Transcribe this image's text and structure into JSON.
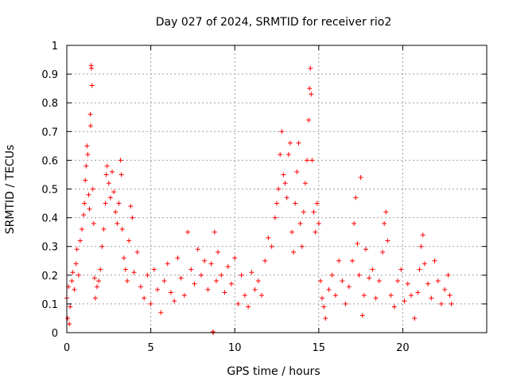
{
  "chart_data": {
    "type": "scatter",
    "title": "Day 027 of 2024, SRMTID for receiver rio2",
    "xlabel": "GPS time / hours",
    "ylabel": "SRMTID / TECUs",
    "xlim": [
      0,
      25
    ],
    "ylim": [
      0,
      1
    ],
    "xticks": [
      0,
      5,
      10,
      15,
      20
    ],
    "xtick_labels": [
      "0",
      "5",
      "10",
      "15",
      "20"
    ],
    "yticks": [
      0,
      0.1,
      0.2,
      0.3,
      0.4,
      0.5,
      0.6,
      0.7,
      0.8,
      0.9,
      1
    ],
    "ytick_labels": [
      "0",
      "0.1",
      "0.2",
      "0.3",
      "0.4",
      "0.5",
      "0.6",
      "0.7",
      "0.8",
      "0.9",
      "1"
    ],
    "grid": true,
    "marker": "+",
    "series": [
      {
        "name": "SRMTID",
        "color": "#ff0000",
        "points": [
          [
            0.0,
            0.12
          ],
          [
            0.05,
            0.05
          ],
          [
            0.1,
            0.16
          ],
          [
            0.15,
            0.03
          ],
          [
            0.2,
            0.09
          ],
          [
            0.3,
            0.18
          ],
          [
            0.35,
            0.21
          ],
          [
            0.45,
            0.15
          ],
          [
            0.55,
            0.24
          ],
          [
            0.6,
            0.29
          ],
          [
            0.7,
            0.2
          ],
          [
            0.8,
            0.32
          ],
          [
            0.9,
            0.36
          ],
          [
            1.0,
            0.41
          ],
          [
            1.05,
            0.45
          ],
          [
            1.1,
            0.53
          ],
          [
            1.15,
            0.58
          ],
          [
            1.2,
            0.65
          ],
          [
            1.25,
            0.62
          ],
          [
            1.3,
            0.48
          ],
          [
            1.35,
            0.43
          ],
          [
            1.4,
            0.76
          ],
          [
            1.42,
            0.72
          ],
          [
            1.45,
            0.93
          ],
          [
            1.47,
            0.92
          ],
          [
            1.5,
            0.86
          ],
          [
            1.55,
            0.5
          ],
          [
            1.6,
            0.38
          ],
          [
            1.65,
            0.19
          ],
          [
            1.7,
            0.12
          ],
          [
            1.8,
            0.16
          ],
          [
            1.9,
            0.18
          ],
          [
            2.0,
            0.22
          ],
          [
            2.1,
            0.3
          ],
          [
            2.2,
            0.36
          ],
          [
            2.3,
            0.45
          ],
          [
            2.35,
            0.55
          ],
          [
            2.4,
            0.58
          ],
          [
            2.5,
            0.52
          ],
          [
            2.6,
            0.47
          ],
          [
            2.7,
            0.56
          ],
          [
            2.8,
            0.49
          ],
          [
            2.9,
            0.42
          ],
          [
            3.0,
            0.38
          ],
          [
            3.1,
            0.45
          ],
          [
            3.2,
            0.6
          ],
          [
            3.25,
            0.55
          ],
          [
            3.3,
            0.36
          ],
          [
            3.4,
            0.26
          ],
          [
            3.5,
            0.22
          ],
          [
            3.6,
            0.18
          ],
          [
            3.7,
            0.32
          ],
          [
            3.8,
            0.44
          ],
          [
            3.9,
            0.4
          ],
          [
            4.0,
            0.21
          ],
          [
            4.2,
            0.28
          ],
          [
            4.4,
            0.16
          ],
          [
            4.6,
            0.12
          ],
          [
            4.8,
            0.2
          ],
          [
            5.0,
            0.1
          ],
          [
            5.2,
            0.22
          ],
          [
            5.4,
            0.15
          ],
          [
            5.6,
            0.07
          ],
          [
            5.8,
            0.18
          ],
          [
            6.0,
            0.24
          ],
          [
            6.2,
            0.14
          ],
          [
            6.4,
            0.11
          ],
          [
            6.6,
            0.26
          ],
          [
            6.8,
            0.19
          ],
          [
            7.0,
            0.13
          ],
          [
            7.2,
            0.35
          ],
          [
            7.4,
            0.22
          ],
          [
            7.6,
            0.17
          ],
          [
            7.8,
            0.29
          ],
          [
            8.0,
            0.2
          ],
          [
            8.2,
            0.25
          ],
          [
            8.4,
            0.15
          ],
          [
            8.6,
            0.24
          ],
          [
            8.8,
            0.35
          ],
          [
            8.9,
            0.18
          ],
          [
            8.7,
            0.003
          ],
          [
            8.72,
            0.0
          ],
          [
            9.0,
            0.28
          ],
          [
            9.2,
            0.2
          ],
          [
            9.4,
            0.14
          ],
          [
            9.6,
            0.23
          ],
          [
            9.8,
            0.17
          ],
          [
            10.0,
            0.26
          ],
          [
            10.2,
            0.1
          ],
          [
            10.4,
            0.2
          ],
          [
            10.6,
            0.13
          ],
          [
            10.8,
            0.09
          ],
          [
            11.0,
            0.21
          ],
          [
            11.2,
            0.15
          ],
          [
            11.4,
            0.18
          ],
          [
            11.6,
            0.13
          ],
          [
            11.8,
            0.25
          ],
          [
            12.0,
            0.33
          ],
          [
            12.2,
            0.3
          ],
          [
            12.4,
            0.4
          ],
          [
            12.5,
            0.45
          ],
          [
            12.6,
            0.5
          ],
          [
            12.7,
            0.62
          ],
          [
            12.8,
            0.7
          ],
          [
            12.9,
            0.55
          ],
          [
            13.0,
            0.52
          ],
          [
            13.1,
            0.47
          ],
          [
            13.2,
            0.62
          ],
          [
            13.3,
            0.66
          ],
          [
            13.4,
            0.35
          ],
          [
            13.5,
            0.28
          ],
          [
            13.6,
            0.45
          ],
          [
            13.7,
            0.56
          ],
          [
            13.8,
            0.66
          ],
          [
            13.9,
            0.38
          ],
          [
            14.0,
            0.3
          ],
          [
            14.1,
            0.42
          ],
          [
            14.2,
            0.52
          ],
          [
            14.3,
            0.6
          ],
          [
            14.4,
            0.74
          ],
          [
            14.45,
            0.85
          ],
          [
            14.5,
            0.92
          ],
          [
            14.55,
            0.83
          ],
          [
            14.6,
            0.6
          ],
          [
            14.7,
            0.42
          ],
          [
            14.8,
            0.35
          ],
          [
            14.9,
            0.45
          ],
          [
            15.0,
            0.38
          ],
          [
            15.1,
            0.18
          ],
          [
            15.2,
            0.12
          ],
          [
            15.3,
            0.09
          ],
          [
            15.4,
            0.05
          ],
          [
            15.6,
            0.15
          ],
          [
            15.8,
            0.2
          ],
          [
            16.0,
            0.13
          ],
          [
            16.2,
            0.25
          ],
          [
            16.4,
            0.18
          ],
          [
            16.6,
            0.1
          ],
          [
            16.8,
            0.16
          ],
          [
            17.0,
            0.25
          ],
          [
            17.1,
            0.38
          ],
          [
            17.2,
            0.47
          ],
          [
            17.3,
            0.31
          ],
          [
            17.4,
            0.2
          ],
          [
            17.5,
            0.54
          ],
          [
            17.6,
            0.06
          ],
          [
            17.7,
            0.13
          ],
          [
            17.8,
            0.29
          ],
          [
            18.0,
            0.19
          ],
          [
            18.2,
            0.22
          ],
          [
            18.4,
            0.12
          ],
          [
            18.6,
            0.18
          ],
          [
            18.8,
            0.28
          ],
          [
            18.9,
            0.38
          ],
          [
            19.0,
            0.42
          ],
          [
            19.1,
            0.32
          ],
          [
            19.3,
            0.13
          ],
          [
            19.5,
            0.09
          ],
          [
            19.7,
            0.18
          ],
          [
            19.9,
            0.22
          ],
          [
            20.1,
            0.11
          ],
          [
            20.3,
            0.17
          ],
          [
            20.5,
            0.13
          ],
          [
            20.7,
            0.05
          ],
          [
            20.9,
            0.14
          ],
          [
            21.0,
            0.22
          ],
          [
            21.1,
            0.3
          ],
          [
            21.2,
            0.34
          ],
          [
            21.3,
            0.24
          ],
          [
            21.5,
            0.17
          ],
          [
            21.7,
            0.12
          ],
          [
            21.9,
            0.25
          ],
          [
            22.1,
            0.18
          ],
          [
            22.3,
            0.1
          ],
          [
            22.5,
            0.15
          ],
          [
            22.7,
            0.2
          ],
          [
            22.8,
            0.13
          ],
          [
            22.9,
            0.1
          ]
        ]
      }
    ]
  }
}
